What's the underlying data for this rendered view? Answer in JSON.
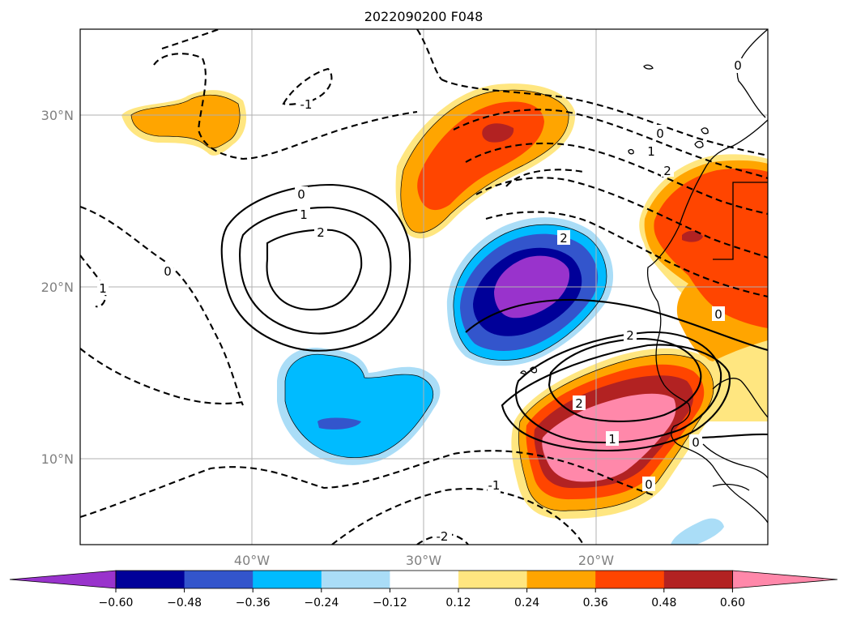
{
  "title": "2022090200 F048",
  "map": {
    "lon_range": [
      -50,
      -10
    ],
    "lat_range": [
      5,
      35
    ],
    "meridians": [
      -40,
      -30,
      -20
    ],
    "parallels": [
      10,
      20,
      30
    ],
    "lon_labels": [
      "40°W",
      "30°W",
      "20°W"
    ],
    "lat_labels": [
      "30°N",
      "20°N",
      "10°N"
    ],
    "grid": true
  },
  "colorbar": {
    "extend": "both",
    "ticks": [
      "−0.60",
      "−0.48",
      "−0.36",
      "−0.24",
      "−0.12",
      "0.12",
      "0.24",
      "0.36",
      "0.48",
      "0.60"
    ],
    "colors": [
      "#9933cc",
      "#000099",
      "#3355cc",
      "#00bbff",
      "#aaddf7",
      "#ffffff",
      "#ffe680",
      "#ffa500",
      "#ff4500",
      "#b22222",
      "#ff88aa"
    ]
  },
  "contour_labels": [
    "0",
    "1",
    "2",
    "-1",
    "-2"
  ],
  "colors": {
    "contour": "#000000",
    "grid": "#b0b0b0",
    "axis_text": "#808080"
  }
}
